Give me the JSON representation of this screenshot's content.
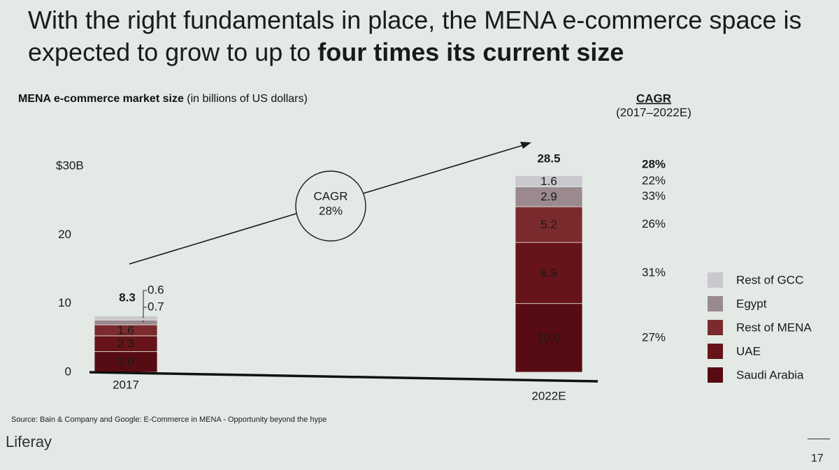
{
  "chart_data": {
    "type": "stacked_bar",
    "title": "With the right fundamentals in place, the MENA e-commerce space is expected to grow to up to",
    "title_emphasis": "four times its current size",
    "subtitle": "MENA e-commerce market size",
    "units": "(in billions of US dollars)",
    "categories": [
      "2017",
      "2022E"
    ],
    "series": [
      {
        "name": "Saudi Arabia",
        "color": "#560c12",
        "values": [
          3.0,
          10.0
        ],
        "value_labels": [
          "3.0",
          "10.0"
        ]
      },
      {
        "name": "UAE",
        "color": "#661419",
        "values": [
          2.3,
          8.9
        ],
        "value_labels": [
          "2.3",
          "8.9"
        ]
      },
      {
        "name": "Rest of MENA",
        "color": "#7b2a2e",
        "values": [
          1.6,
          5.2
        ],
        "value_labels": [
          "1.6",
          "5.2"
        ]
      },
      {
        "name": "Egypt",
        "color": "#9a8a8e",
        "values": [
          0.7,
          2.9
        ],
        "value_labels": [
          "0.7",
          "2.9"
        ]
      },
      {
        "name": "Rest of GCC",
        "color": "#c9c9cd",
        "values": [
          0.6,
          1.6
        ],
        "value_labels": [
          "0.6",
          "1.6"
        ]
      }
    ],
    "totals": [
      8.3,
      28.5
    ],
    "ylim": [
      0,
      30
    ],
    "yticks": [
      0,
      10,
      20,
      {
        "value": 30,
        "label": "$30B"
      }
    ],
    "legend": "right",
    "cagr": {
      "title": "CAGR",
      "period": "(2017–2022E)",
      "total": 28,
      "total_label": "28%",
      "values": [
        27,
        31,
        26,
        33,
        22
      ],
      "value_labels": [
        "27%",
        "31%",
        "26%",
        "33%",
        "22%"
      ]
    },
    "source": "Source: Bain & Company and Google: E-Commerce in MENA - Opportunity beyond the hype"
  },
  "logo": "Liferay",
  "page_number": "17"
}
